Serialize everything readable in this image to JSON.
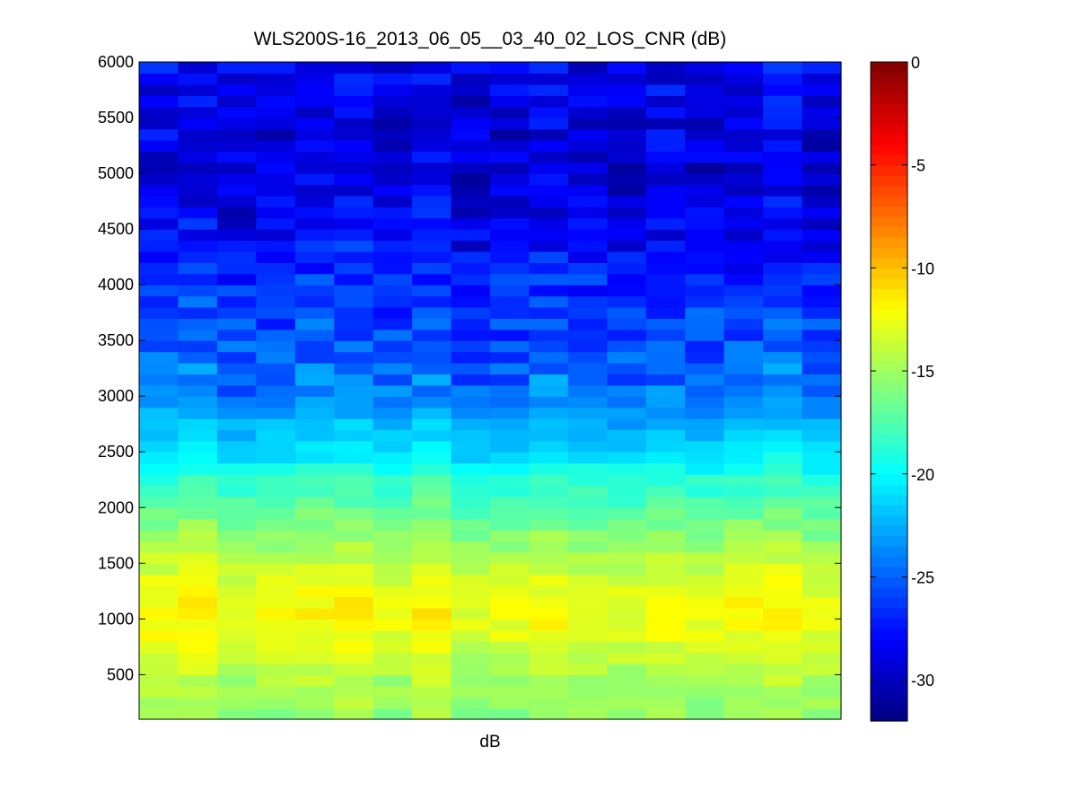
{
  "chart_data": {
    "type": "heatmap",
    "title": "WLS200S-16_2013_06_05__03_40_02_LOS_CNR (dB)",
    "xlabel": "dB",
    "ylabel": "",
    "ylim": [
      100,
      6000
    ],
    "yticks": [
      500,
      1000,
      1500,
      2000,
      2500,
      3000,
      3500,
      4000,
      4500,
      5000,
      5500,
      6000
    ],
    "xticks": [],
    "colormap": "jet",
    "colorbar": {
      "clim": [
        -32,
        0
      ],
      "ticks": [
        0,
        -5,
        -10,
        -15,
        -20,
        -25,
        -30
      ]
    },
    "columns": 18,
    "rows": 59,
    "row_step": 100,
    "value_profile": {
      "altitude": [
        100,
        300,
        500,
        700,
        800,
        900,
        1000,
        1100,
        1200,
        1300,
        1500,
        1700,
        1900,
        2100,
        2300,
        2400,
        2500,
        2700,
        2900,
        3000,
        3200,
        3400,
        3600,
        3800,
        4000,
        4200,
        4400,
        4600,
        4800,
        5000,
        5200,
        5400,
        5600,
        5800,
        6000
      ],
      "cnr_db": [
        -15.5,
        -15.0,
        -14.5,
        -13.5,
        -13.0,
        -12.5,
        -12.3,
        -12.3,
        -12.5,
        -13.0,
        -14.0,
        -15.3,
        -16.5,
        -17.8,
        -19.0,
        -20.0,
        -21.0,
        -22.0,
        -23.2,
        -24.0,
        -24.5,
        -25.0,
        -25.5,
        -26.0,
        -26.5,
        -27.5,
        -28.0,
        -28.5,
        -29.0,
        -29.3,
        -29.0,
        -28.8,
        -28.5,
        -28.5,
        -28.3
      ]
    },
    "column_offsets_db": [
      0.3,
      0.7,
      -0.3,
      -0.1,
      0.3,
      0.5,
      -0.3,
      0.6,
      -0.6,
      -0.4,
      0.2,
      -0.2,
      -0.4,
      0.1,
      -0.3,
      0.2,
      0.6,
      -0.2
    ]
  }
}
